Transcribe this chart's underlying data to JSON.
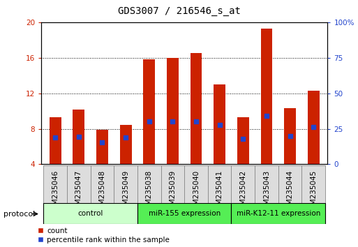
{
  "title": "GDS3007 / 216546_s_at",
  "samples": [
    "GSM235046",
    "GSM235047",
    "GSM235048",
    "GSM235049",
    "GSM235038",
    "GSM235039",
    "GSM235040",
    "GSM235041",
    "GSM235042",
    "GSM235043",
    "GSM235044",
    "GSM235045"
  ],
  "count_values": [
    9.3,
    10.2,
    7.9,
    8.4,
    15.8,
    16.0,
    16.5,
    13.0,
    9.3,
    19.3,
    10.3,
    12.3
  ],
  "percentile_values": [
    7.05,
    7.1,
    6.5,
    7.0,
    8.85,
    8.85,
    8.85,
    8.42,
    6.88,
    9.42,
    7.2,
    8.2
  ],
  "y_min": 4,
  "y_max": 20,
  "y_ticks": [
    4,
    8,
    12,
    16,
    20
  ],
  "right_y_ticks_pct": [
    0,
    25,
    50,
    75,
    100
  ],
  "right_y_labels": [
    "0",
    "25",
    "50",
    "75",
    "100%"
  ],
  "bar_color": "#cc2200",
  "marker_color": "#2244cc",
  "protocol_groups": [
    {
      "label": "control",
      "start": 0,
      "end": 3,
      "color": "#ccffcc"
    },
    {
      "label": "miR-155 expression",
      "start": 4,
      "end": 7,
      "color": "#55ee55"
    },
    {
      "label": "miR-K12-11 expression",
      "start": 8,
      "end": 11,
      "color": "#55ee55"
    }
  ],
  "protocol_label": "protocol",
  "legend_count_label": "count",
  "legend_percentile_label": "percentile rank within the sample",
  "bar_width": 0.5,
  "title_fontsize": 10,
  "tick_fontsize": 7.5,
  "label_fontsize": 8,
  "axis_tick_color_left": "#cc2200",
  "axis_tick_color_right": "#2244cc"
}
